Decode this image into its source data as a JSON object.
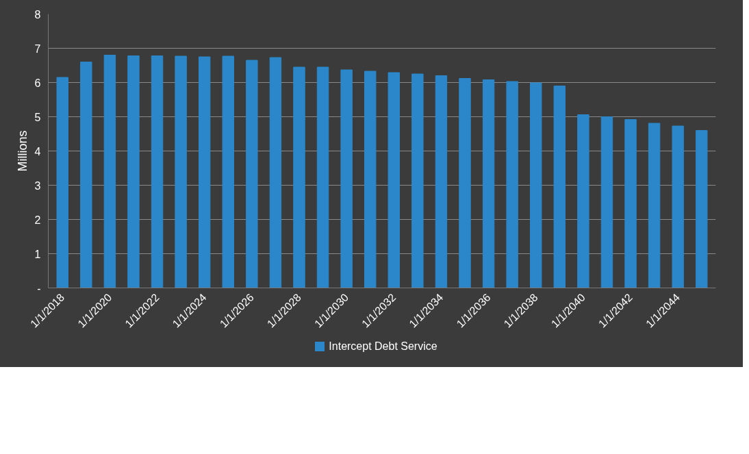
{
  "chart_data": {
    "type": "bar",
    "ylabel": "Millions",
    "categories": [
      "1/1/2018",
      null,
      "1/1/2020",
      null,
      "1/1/2022",
      null,
      "1/1/2024",
      null,
      "1/1/2026",
      null,
      "1/1/2028",
      null,
      "1/1/2030",
      null,
      "1/1/2032",
      null,
      "1/1/2034",
      null,
      "1/1/2036",
      null,
      "1/1/2038",
      null,
      "1/1/2040",
      null,
      "1/1/2042",
      null,
      "1/1/2044",
      null
    ],
    "series": [
      {
        "name": "Intercept Debt Service",
        "color": "#2b87c9",
        "values": [
          6.15,
          6.6,
          6.8,
          6.78,
          6.78,
          6.77,
          6.75,
          6.77,
          6.65,
          6.73,
          6.45,
          6.45,
          6.37,
          6.33,
          6.29,
          6.25,
          6.2,
          6.12,
          6.08,
          6.03,
          5.99,
          5.9,
          5.06,
          5.0,
          4.92,
          4.81,
          4.73,
          4.6
        ]
      }
    ],
    "ylim": [
      0,
      8
    ],
    "yticks": [
      {
        "value": 0,
        "label": "-"
      },
      1,
      2,
      3,
      4,
      5,
      6,
      7,
      8
    ],
    "grid": "y",
    "legend": "bottom"
  }
}
